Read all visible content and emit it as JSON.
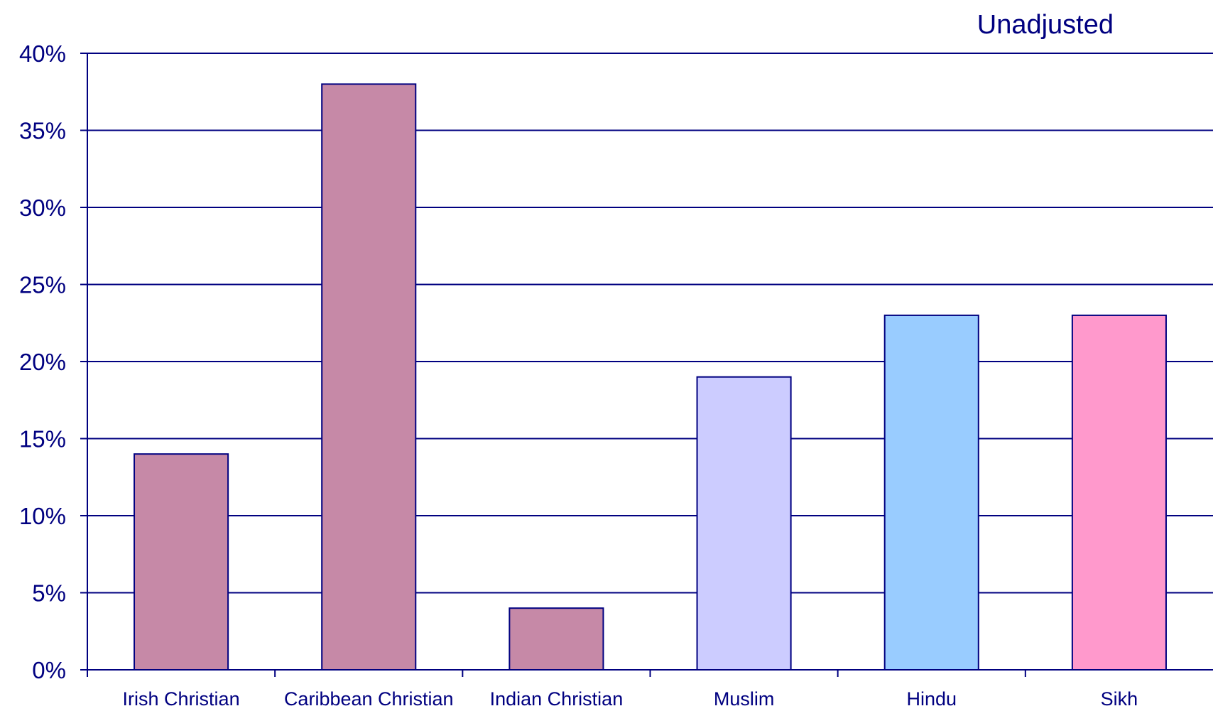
{
  "chart_data": {
    "type": "bar",
    "title": "Unadjusted",
    "categories": [
      "Irish Christian",
      "Caribbean Christian",
      "Indian Christian",
      "Muslim",
      "Hindu",
      "Sikh"
    ],
    "values": [
      14,
      38,
      4,
      19,
      23,
      23
    ],
    "value_unit": "%",
    "bar_colors": [
      "#c689a7",
      "#c689a7",
      "#c689a7",
      "#ccccff",
      "#99ccff",
      "#ff99cc"
    ],
    "ylim": [
      0,
      40
    ],
    "yticks": [
      0,
      5,
      10,
      15,
      20,
      25,
      30,
      35,
      40
    ],
    "ytick_labels": [
      "0%",
      "5%",
      "10%",
      "15%",
      "20%",
      "25%",
      "30%",
      "35%",
      "40%"
    ],
    "xlabel": "",
    "ylabel": "",
    "grid": true,
    "legend": "none"
  },
  "colors": {
    "axis": "#000080",
    "grid": "#000080",
    "bar_outline": "#000080",
    "text": "#000080"
  }
}
